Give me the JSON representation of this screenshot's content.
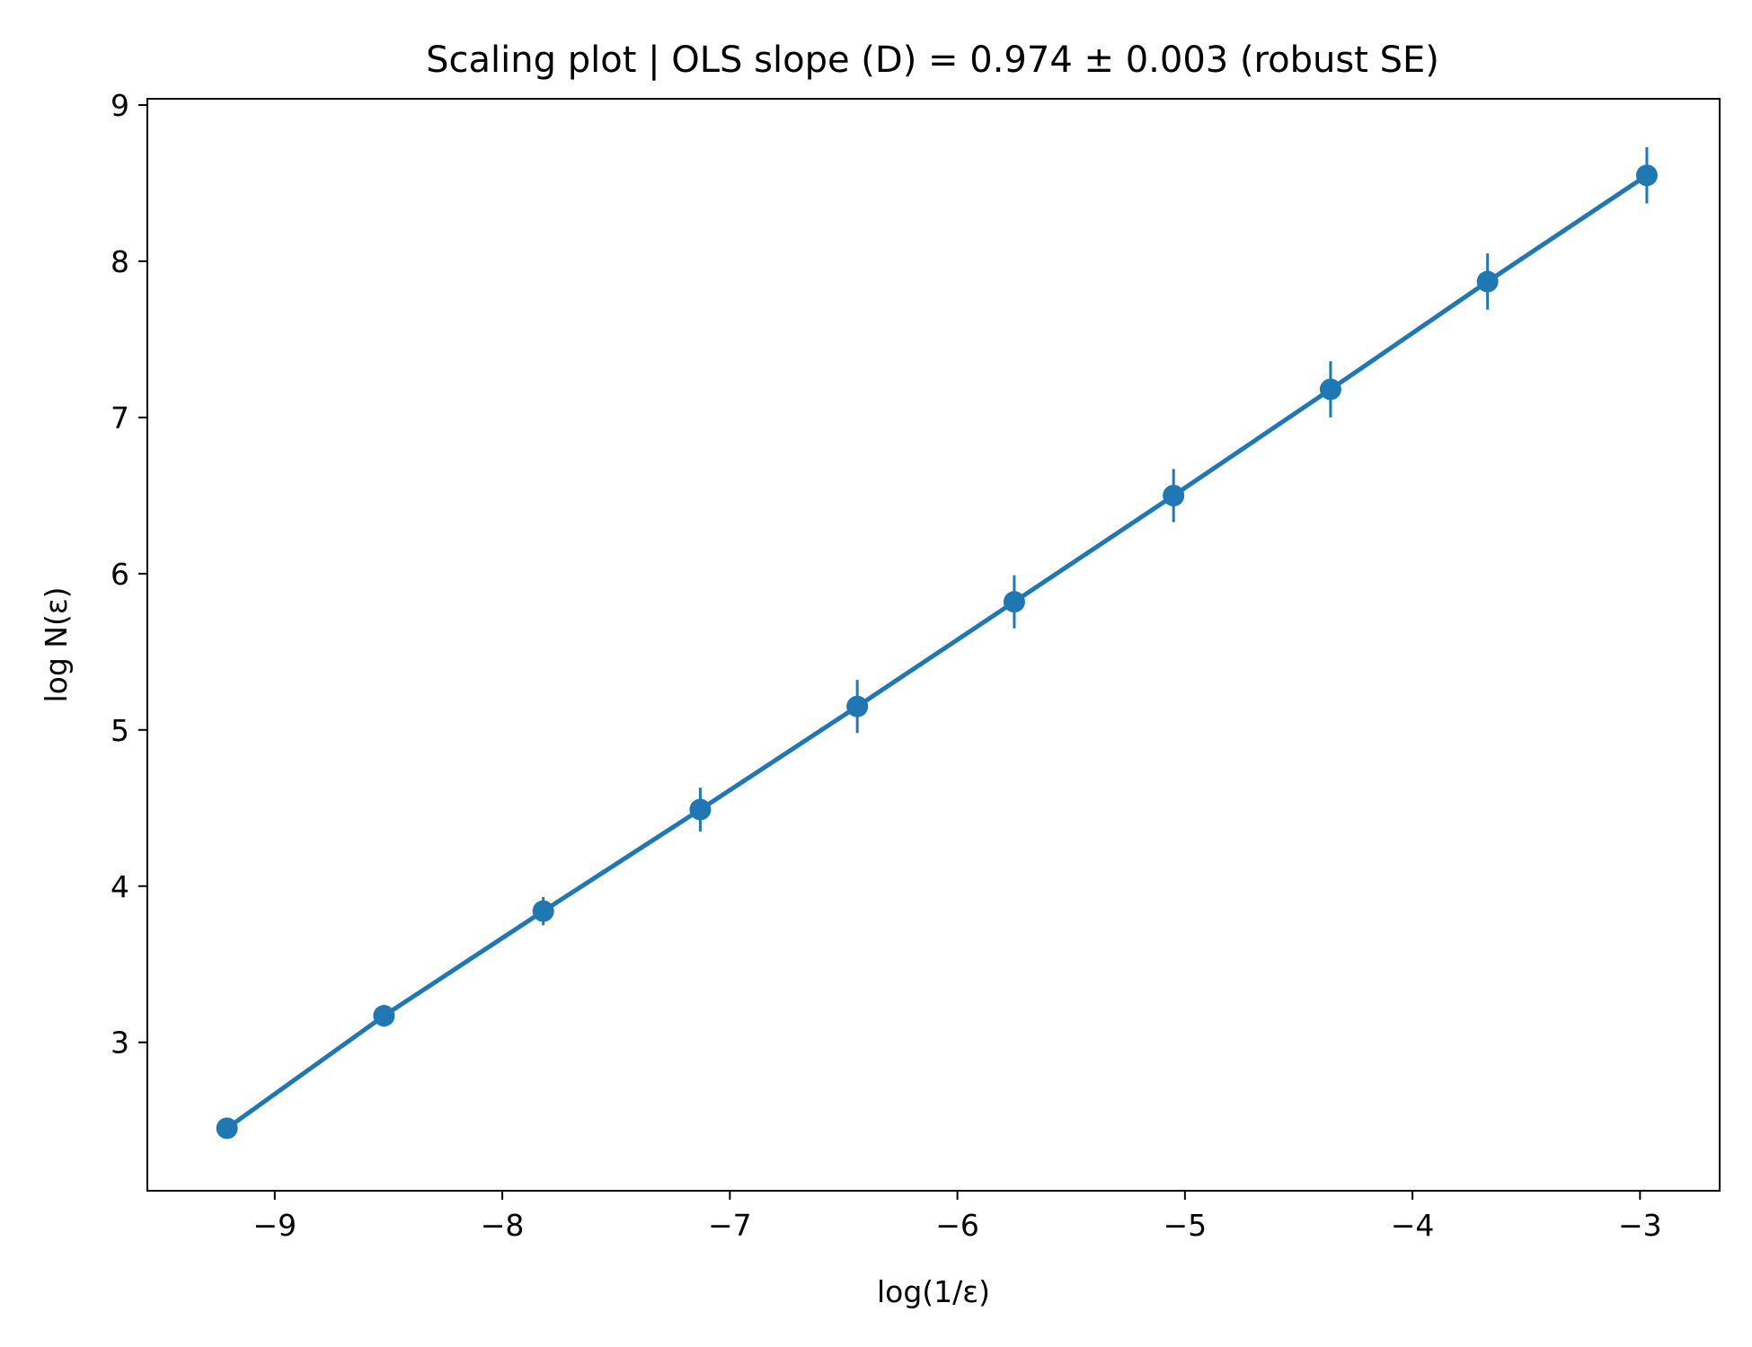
{
  "chart_data": {
    "type": "line",
    "title": "Scaling plot | OLS slope (D) = 0.974 ± 0.003 (robust SE)",
    "xlabel": "log(1/ε)",
    "ylabel": "log N(ε)",
    "xlim": [
      -9.56,
      -2.65
    ],
    "ylim": [
      2.05,
      9.04
    ],
    "xticks": [
      -9,
      -8,
      -7,
      -6,
      -5,
      -4,
      -3
    ],
    "yticks": [
      3,
      4,
      5,
      6,
      7,
      8,
      9
    ],
    "xtick_labels": [
      "−9",
      "−8",
      "−7",
      "−6",
      "−5",
      "−4",
      "−3"
    ],
    "ytick_labels": [
      "3",
      "4",
      "5",
      "6",
      "7",
      "8",
      "9"
    ],
    "grid": false,
    "legend": false,
    "series": [
      {
        "color": "#1f77b4",
        "marker": "circle",
        "line": true,
        "x": [
          -9.21,
          -8.52,
          -7.82,
          -7.13,
          -6.44,
          -5.75,
          -5.05,
          -4.36,
          -3.67,
          -2.97
        ],
        "y": [
          2.45,
          3.17,
          3.84,
          4.49,
          5.15,
          5.82,
          6.5,
          7.18,
          7.87,
          8.55
        ],
        "yerr": [
          0.05,
          0.07,
          0.09,
          0.14,
          0.17,
          0.17,
          0.17,
          0.18,
          0.18,
          0.18
        ]
      }
    ]
  }
}
